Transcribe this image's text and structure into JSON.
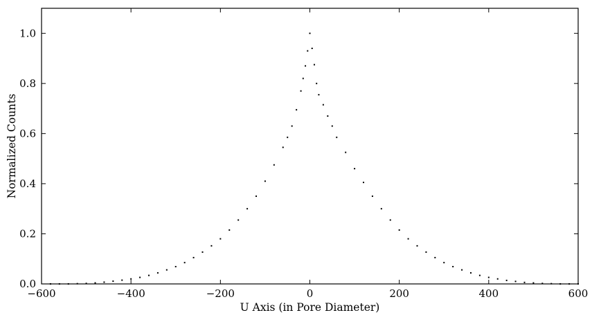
{
  "chart_data": {
    "type": "scatter",
    "title": "",
    "xlabel": "U Axis (in Pore Diameter)",
    "ylabel": "Normalized Counts",
    "xlim": [
      -600,
      600
    ],
    "ylim": [
      0.0,
      1.1
    ],
    "xticks": [
      -600,
      -400,
      -200,
      0,
      200,
      400,
      600
    ],
    "xtick_labels": [
      "−600",
      "−400",
      "−200",
      "0",
      "200",
      "400",
      "600"
    ],
    "yticks": [
      0.0,
      0.2,
      0.4,
      0.6,
      0.8,
      1.0
    ],
    "ytick_labels": [
      "0.0",
      "0.2",
      "0.4",
      "0.6",
      "0.8",
      "1.0"
    ],
    "grid": false,
    "legend": "none",
    "marker_color": "#000000",
    "series": [
      {
        "x": [
          -580,
          -560,
          -540,
          -520,
          -500,
          -480,
          -460,
          -440,
          -420,
          -400,
          -380,
          -360,
          -340,
          -320,
          -300,
          -280,
          -260,
          -240,
          -220,
          -200,
          -180,
          -160,
          -140,
          -120,
          -100,
          -80,
          -60,
          -50,
          -40,
          -30,
          -20,
          -15,
          -10,
          -5,
          0,
          5,
          10,
          15,
          20,
          30,
          40,
          50,
          60,
          80,
          100,
          120,
          140,
          160,
          180,
          200,
          220,
          240,
          260,
          280,
          300,
          320,
          340,
          360,
          380,
          400,
          420,
          440,
          460,
          480,
          500,
          520,
          540,
          560,
          580,
          600
        ],
        "y": [
          0.0,
          0.0,
          0.0,
          0.001,
          0.002,
          0.004,
          0.007,
          0.011,
          0.015,
          0.02,
          0.026,
          0.034,
          0.044,
          0.056,
          0.069,
          0.085,
          0.105,
          0.127,
          0.152,
          0.18,
          0.215,
          0.255,
          0.3,
          0.35,
          0.41,
          0.475,
          0.545,
          0.585,
          0.63,
          0.695,
          0.77,
          0.82,
          0.87,
          0.93,
          1.0,
          0.94,
          0.875,
          0.8,
          0.755,
          0.715,
          0.67,
          0.63,
          0.585,
          0.525,
          0.46,
          0.405,
          0.35,
          0.3,
          0.255,
          0.215,
          0.18,
          0.152,
          0.127,
          0.105,
          0.085,
          0.069,
          0.056,
          0.044,
          0.034,
          0.026,
          0.02,
          0.014,
          0.01,
          0.006,
          0.004,
          0.002,
          0.001,
          0.0,
          0.0,
          0.0
        ]
      }
    ]
  }
}
